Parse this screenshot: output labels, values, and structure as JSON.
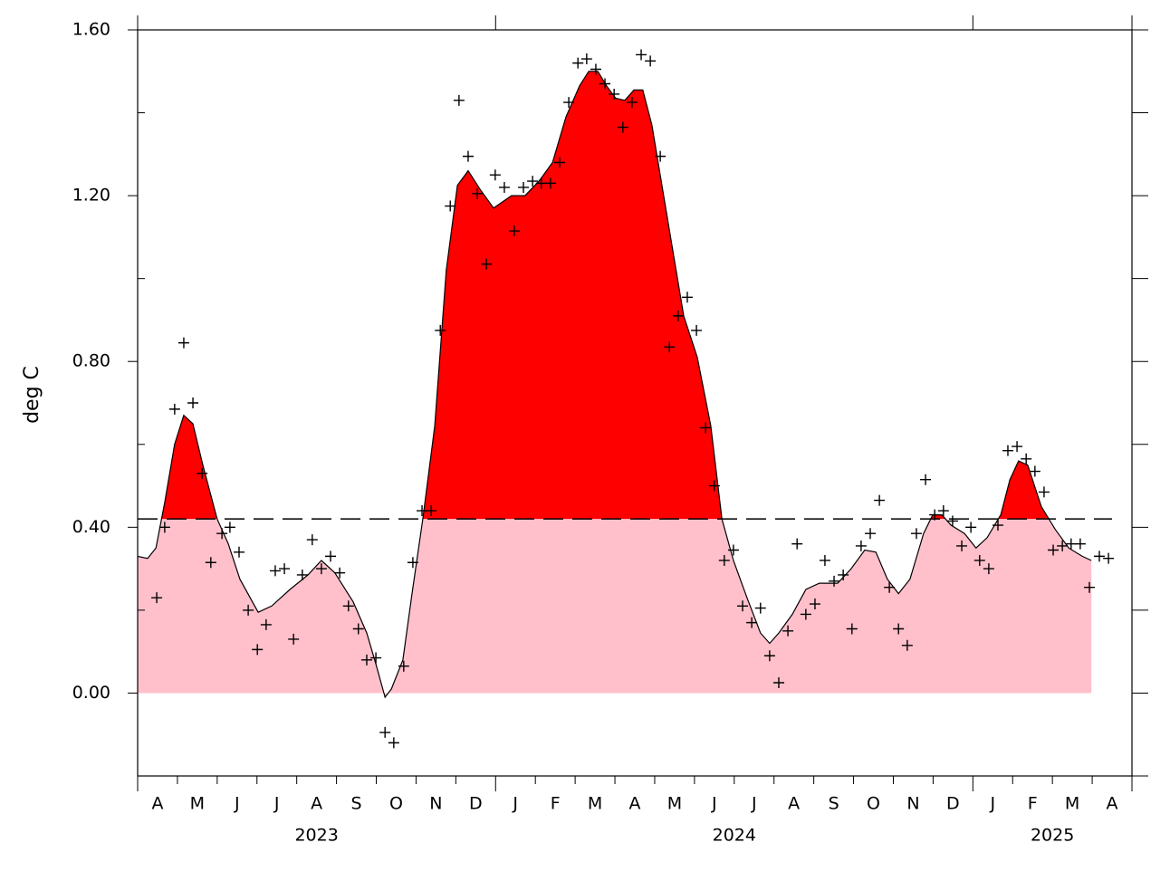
{
  "chart_data": {
    "type": "area",
    "y_label": "deg C",
    "xlim": [
      0,
      25
    ],
    "ylim": [
      -0.2,
      1.6
    ],
    "yticks": [
      {
        "value": 0,
        "label": "0.00"
      },
      {
        "value": 0.4,
        "label": "0.40"
      },
      {
        "value": 0.8,
        "label": "0.80"
      },
      {
        "value": 1.2,
        "label": "1.20"
      },
      {
        "value": 1.6,
        "label": "1.60"
      }
    ],
    "y_minor_ticks": [
      -0.2,
      0.2,
      0.6,
      1.0,
      1.4
    ],
    "month_groups": [
      {
        "year": "2023",
        "months": [
          "A",
          "M",
          "J",
          "J",
          "A",
          "S",
          "O",
          "N",
          "D"
        ]
      },
      {
        "year": "2024",
        "months": [
          "J",
          "F",
          "M",
          "A",
          "M",
          "J",
          "J",
          "A",
          "S",
          "O",
          "N",
          "D"
        ]
      },
      {
        "year": "2025",
        "months": [
          "J",
          "F",
          "M",
          "A"
        ]
      }
    ],
    "reference_line": {
      "value": 0.42,
      "color": "#000000",
      "style": "dashed"
    },
    "series": [
      {
        "type": "area",
        "color": "#000000",
        "fill_above": "#ff0000",
        "fill_below": "#ffc0cb",
        "x": [
          0.0,
          0.25,
          0.46,
          0.68,
          0.93,
          1.16,
          1.39,
          1.64,
          2.0,
          2.28,
          2.57,
          3.03,
          3.37,
          3.83,
          4.28,
          4.62,
          4.96,
          5.42,
          5.76,
          5.99,
          6.22,
          6.38,
          6.67,
          6.9,
          7.17,
          7.47,
          7.76,
          8.04,
          8.31,
          8.61,
          8.95,
          9.4,
          9.74,
          10.09,
          10.43,
          10.77,
          11.11,
          11.34,
          11.57,
          11.79,
          12.02,
          12.25,
          12.48,
          12.7,
          12.93,
          13.39,
          13.73,
          14.07,
          14.41,
          14.69,
          14.98,
          15.32,
          15.66,
          15.89,
          16.12,
          16.46,
          16.8,
          17.14,
          17.6,
          17.94,
          18.28,
          18.56,
          18.85,
          19.13,
          19.42,
          19.76,
          19.99,
          20.22,
          20.45,
          20.79,
          21.08,
          21.36,
          21.7,
          21.93,
          22.15,
          22.38,
          22.72,
          23.07,
          23.41,
          23.75,
          23.98
        ],
        "values": [
          0.33,
          0.325,
          0.35,
          0.46,
          0.6,
          0.67,
          0.65,
          0.55,
          0.42,
          0.36,
          0.275,
          0.195,
          0.21,
          0.25,
          0.285,
          0.32,
          0.29,
          0.22,
          0.145,
          0.07,
          -0.01,
          0.01,
          0.08,
          0.24,
          0.42,
          0.645,
          1.02,
          1.225,
          1.26,
          1.215,
          1.17,
          1.2,
          1.2,
          1.235,
          1.28,
          1.39,
          1.465,
          1.5,
          1.5,
          1.465,
          1.435,
          1.43,
          1.455,
          1.455,
          1.37,
          1.105,
          0.91,
          0.81,
          0.645,
          0.42,
          0.32,
          0.23,
          0.145,
          0.12,
          0.145,
          0.19,
          0.25,
          0.265,
          0.265,
          0.3,
          0.345,
          0.34,
          0.275,
          0.24,
          0.275,
          0.385,
          0.43,
          0.43,
          0.405,
          0.385,
          0.35,
          0.375,
          0.43,
          0.515,
          0.56,
          0.55,
          0.45,
          0.395,
          0.35,
          0.33,
          0.32
        ]
      },
      {
        "type": "scatter",
        "marker": "+",
        "color": "#000000",
        "x": [
          0.48,
          0.68,
          0.93,
          1.16,
          1.39,
          1.62,
          1.84,
          2.12,
          2.32,
          2.55,
          2.78,
          3.01,
          3.23,
          3.46,
          3.69,
          3.92,
          4.14,
          4.39,
          4.62,
          4.85,
          5.08,
          5.3,
          5.55,
          5.76,
          5.99,
          6.22,
          6.44,
          6.69,
          6.92,
          7.15,
          7.38,
          7.61,
          7.86,
          8.08,
          8.31,
          8.54,
          8.77,
          8.99,
          9.22,
          9.47,
          9.7,
          9.93,
          10.15,
          10.38,
          10.61,
          10.84,
          11.07,
          11.29,
          11.52,
          11.75,
          11.98,
          12.2,
          12.43,
          12.66,
          12.89,
          13.14,
          13.37,
          13.59,
          13.82,
          14.05,
          14.28,
          14.5,
          14.75,
          14.98,
          15.21,
          15.44,
          15.66,
          15.89,
          16.12,
          16.35,
          16.58,
          16.8,
          17.03,
          17.28,
          17.51,
          17.74,
          17.96,
          18.19,
          18.42,
          18.65,
          18.9,
          19.13,
          19.35,
          19.58,
          19.81,
          20.04,
          20.26,
          20.49,
          20.72,
          20.95,
          21.17,
          21.4,
          21.63,
          21.88,
          22.11,
          22.34,
          22.56,
          22.79,
          23.02,
          23.25,
          23.47,
          23.7,
          23.93,
          24.18,
          24.41
        ],
        "values": [
          0.23,
          0.4,
          0.685,
          0.845,
          0.7,
          0.53,
          0.315,
          0.385,
          0.4,
          0.34,
          0.2,
          0.105,
          0.165,
          0.295,
          0.3,
          0.13,
          0.285,
          0.37,
          0.3,
          0.33,
          0.29,
          0.21,
          0.155,
          0.08,
          0.085,
          -0.095,
          -0.12,
          0.065,
          0.315,
          0.44,
          0.44,
          0.875,
          1.175,
          1.43,
          1.295,
          1.205,
          1.035,
          1.25,
          1.22,
          1.115,
          1.22,
          1.235,
          1.23,
          1.23,
          1.28,
          1.425,
          1.52,
          1.53,
          1.505,
          1.47,
          1.445,
          1.365,
          1.425,
          1.54,
          1.525,
          1.295,
          0.835,
          0.91,
          0.955,
          0.875,
          0.64,
          0.5,
          0.32,
          0.345,
          0.21,
          0.17,
          0.205,
          0.09,
          0.025,
          0.15,
          0.36,
          0.19,
          0.215,
          0.32,
          0.27,
          0.285,
          0.155,
          0.355,
          0.385,
          0.465,
          0.255,
          0.155,
          0.115,
          0.385,
          0.515,
          0.43,
          0.44,
          0.415,
          0.355,
          0.4,
          0.32,
          0.3,
          0.405,
          0.585,
          0.595,
          0.565,
          0.535,
          0.485,
          0.345,
          0.355,
          0.36,
          0.36,
          0.255,
          0.33,
          0.325
        ]
      }
    ]
  }
}
